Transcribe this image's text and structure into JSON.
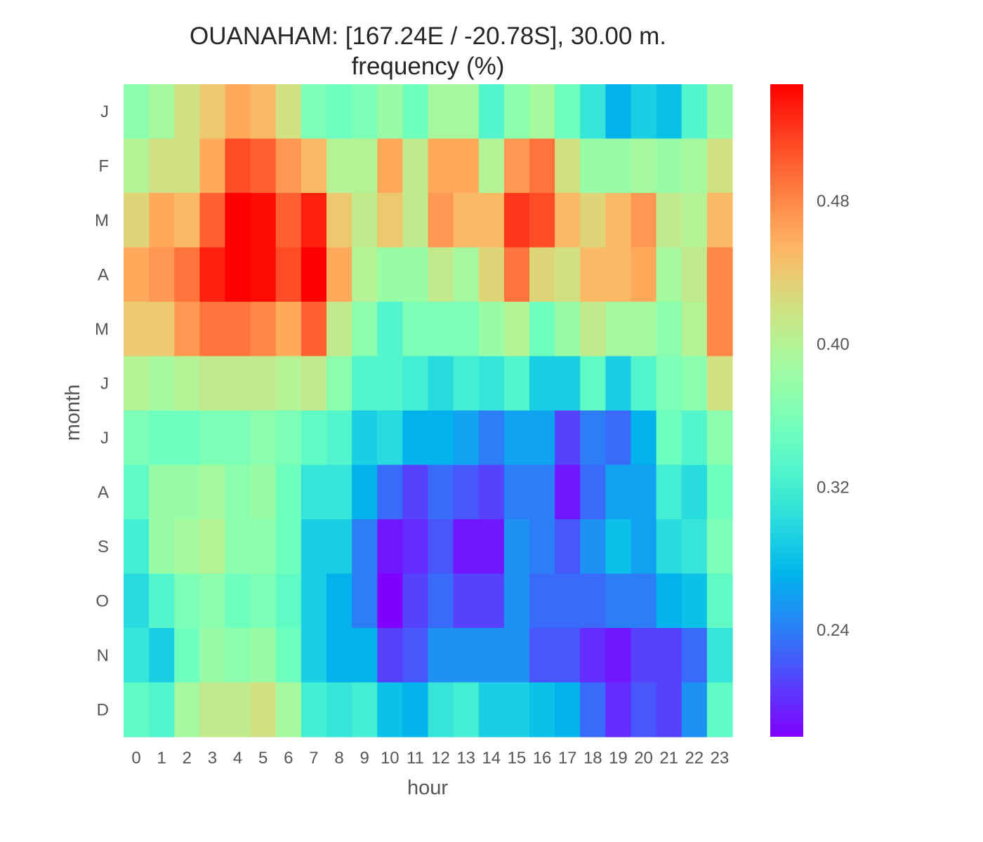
{
  "chart_data": {
    "type": "heatmap",
    "title": "OUANAHAM: [167.24E / -20.78S], 30.00 m.",
    "subtitle": "frequency (%)",
    "xlabel": "hour",
    "ylabel": "month",
    "x_categories": [
      "0",
      "1",
      "2",
      "3",
      "4",
      "5",
      "6",
      "7",
      "8",
      "9",
      "10",
      "11",
      "12",
      "13",
      "14",
      "15",
      "16",
      "17",
      "18",
      "19",
      "20",
      "21",
      "22",
      "23"
    ],
    "y_categories": [
      "J",
      "F",
      "M",
      "A",
      "M",
      "J",
      "J",
      "A",
      "S",
      "O",
      "N",
      "D"
    ],
    "colormap": "rainbow",
    "vmin": 0.18,
    "vmax": 0.545,
    "colorbar_ticks": [
      0.48,
      0.4,
      0.32,
      0.24
    ],
    "colorbar_tick_labels": [
      "0.48",
      "0.40",
      "0.32",
      "0.24"
    ],
    "values": [
      [
        0.37,
        0.39,
        0.42,
        0.44,
        0.46,
        0.45,
        0.42,
        0.36,
        0.35,
        0.36,
        0.38,
        0.35,
        0.39,
        0.39,
        0.33,
        0.37,
        0.39,
        0.35,
        0.31,
        0.27,
        0.29,
        0.28,
        0.33,
        0.38
      ],
      [
        0.4,
        0.42,
        0.42,
        0.46,
        0.51,
        0.5,
        0.47,
        0.45,
        0.4,
        0.4,
        0.46,
        0.41,
        0.46,
        0.46,
        0.4,
        0.47,
        0.49,
        0.42,
        0.38,
        0.38,
        0.39,
        0.38,
        0.39,
        0.42
      ],
      [
        0.43,
        0.46,
        0.45,
        0.5,
        0.55,
        0.54,
        0.5,
        0.53,
        0.44,
        0.41,
        0.44,
        0.41,
        0.47,
        0.45,
        0.45,
        0.52,
        0.51,
        0.45,
        0.43,
        0.45,
        0.47,
        0.41,
        0.4,
        0.45
      ],
      [
        0.46,
        0.47,
        0.49,
        0.53,
        0.55,
        0.54,
        0.51,
        0.55,
        0.46,
        0.4,
        0.38,
        0.38,
        0.41,
        0.39,
        0.43,
        0.49,
        0.43,
        0.42,
        0.45,
        0.45,
        0.46,
        0.39,
        0.41,
        0.48
      ],
      [
        0.44,
        0.44,
        0.47,
        0.49,
        0.49,
        0.48,
        0.46,
        0.5,
        0.41,
        0.37,
        0.33,
        0.36,
        0.36,
        0.36,
        0.38,
        0.4,
        0.35,
        0.38,
        0.41,
        0.39,
        0.39,
        0.37,
        0.4,
        0.48
      ],
      [
        0.4,
        0.39,
        0.4,
        0.41,
        0.41,
        0.41,
        0.4,
        0.41,
        0.37,
        0.33,
        0.33,
        0.32,
        0.3,
        0.32,
        0.31,
        0.33,
        0.29,
        0.29,
        0.34,
        0.29,
        0.33,
        0.36,
        0.37,
        0.42
      ],
      [
        0.36,
        0.35,
        0.35,
        0.36,
        0.36,
        0.37,
        0.36,
        0.34,
        0.33,
        0.29,
        0.3,
        0.27,
        0.27,
        0.26,
        0.24,
        0.26,
        0.26,
        0.21,
        0.24,
        0.23,
        0.27,
        0.35,
        0.33,
        0.37
      ],
      [
        0.34,
        0.38,
        0.38,
        0.39,
        0.37,
        0.38,
        0.35,
        0.31,
        0.31,
        0.27,
        0.23,
        0.21,
        0.23,
        0.22,
        0.21,
        0.24,
        0.24,
        0.19,
        0.23,
        0.26,
        0.26,
        0.32,
        0.3,
        0.35
      ],
      [
        0.32,
        0.38,
        0.39,
        0.4,
        0.37,
        0.37,
        0.35,
        0.29,
        0.29,
        0.24,
        0.19,
        0.2,
        0.22,
        0.19,
        0.19,
        0.25,
        0.24,
        0.22,
        0.25,
        0.28,
        0.26,
        0.3,
        0.31,
        0.36
      ],
      [
        0.3,
        0.33,
        0.36,
        0.37,
        0.35,
        0.36,
        0.34,
        0.29,
        0.27,
        0.24,
        0.18,
        0.21,
        0.23,
        0.21,
        0.21,
        0.25,
        0.23,
        0.23,
        0.23,
        0.24,
        0.24,
        0.27,
        0.28,
        0.34
      ],
      [
        0.31,
        0.29,
        0.35,
        0.38,
        0.37,
        0.38,
        0.35,
        0.29,
        0.27,
        0.27,
        0.21,
        0.22,
        0.25,
        0.25,
        0.25,
        0.25,
        0.22,
        0.22,
        0.2,
        0.19,
        0.21,
        0.21,
        0.23,
        0.31
      ],
      [
        0.34,
        0.33,
        0.39,
        0.41,
        0.41,
        0.42,
        0.39,
        0.32,
        0.31,
        0.32,
        0.28,
        0.27,
        0.31,
        0.32,
        0.29,
        0.29,
        0.28,
        0.27,
        0.23,
        0.2,
        0.22,
        0.21,
        0.25,
        0.34
      ]
    ]
  }
}
